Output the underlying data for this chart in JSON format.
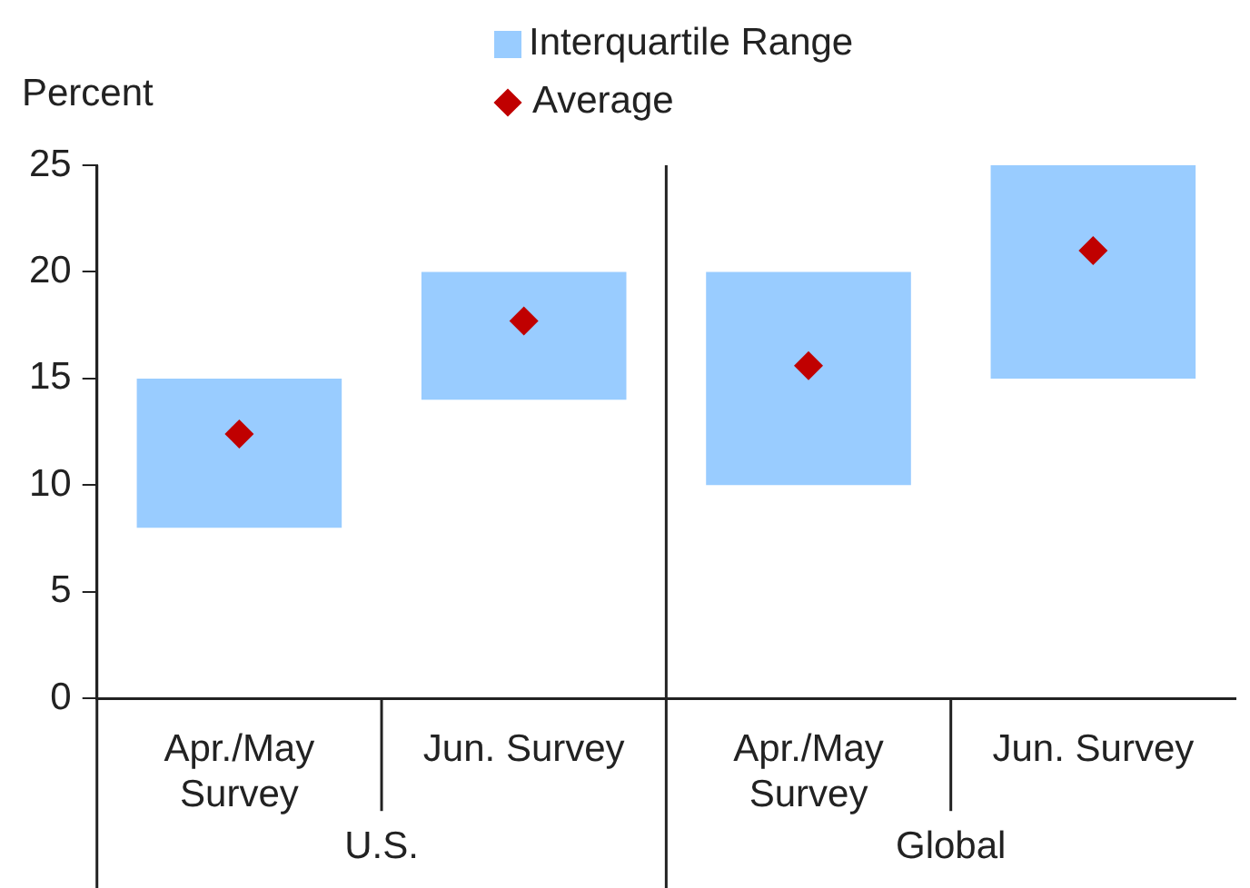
{
  "chart_data": {
    "type": "bar",
    "ylabel": "Percent",
    "categories": [
      "Apr./May Survey",
      "Jun. Survey",
      "Apr./May Survey",
      "Jun. Survey"
    ],
    "series": [
      {
        "name": "Interquartile Range",
        "color": "#99ccff",
        "base": [
          8,
          14,
          10,
          15
        ],
        "values": [
          7,
          6,
          10,
          10
        ]
      },
      {
        "name": "Average",
        "type": "scatter",
        "color": "#c00000",
        "marker": "diamond",
        "values": [
          12.4,
          17.7,
          15.6,
          21
        ]
      }
    ],
    "ylim": [
      0,
      25
    ],
    "yticks": [
      0,
      5,
      10,
      15,
      20,
      25
    ],
    "grid": false,
    "legend": "top",
    "annotations": [
      "U.S.",
      "Global"
    ]
  }
}
